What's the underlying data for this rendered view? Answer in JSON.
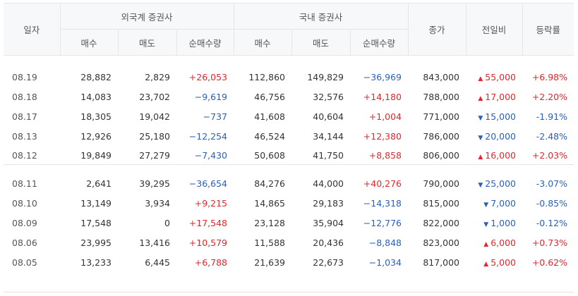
{
  "header": {
    "date_label": "일자",
    "foreign_label": "외국계 증권사",
    "domestic_label": "국내 증권사",
    "close_label": "종가",
    "change_label": "전일비",
    "rate_label": "등락률",
    "buy_label": "매수",
    "sell_label": "매도",
    "net_label": "순매수량"
  },
  "colors": {
    "up": "#e0272f",
    "down": "#2a60b9"
  },
  "rows": [
    {
      "date": "08.19",
      "f_buy": "28,882",
      "f_sell": "2,829",
      "f_net": "+26,053",
      "f_net_dir": "up",
      "d_buy": "112,860",
      "d_sell": "149,829",
      "d_net": "−36,969",
      "d_net_dir": "down",
      "close": "843,000",
      "change": "55,000",
      "change_dir": "up",
      "rate": "+6.98%"
    },
    {
      "date": "08.18",
      "f_buy": "14,083",
      "f_sell": "23,702",
      "f_net": "−9,619",
      "f_net_dir": "down",
      "d_buy": "46,756",
      "d_sell": "32,576",
      "d_net": "+14,180",
      "d_net_dir": "up",
      "close": "788,000",
      "change": "17,000",
      "change_dir": "up",
      "rate": "+2.20%"
    },
    {
      "date": "08.17",
      "f_buy": "18,305",
      "f_sell": "19,042",
      "f_net": "−737",
      "f_net_dir": "down",
      "d_buy": "41,608",
      "d_sell": "40,604",
      "d_net": "+1,004",
      "d_net_dir": "up",
      "close": "771,000",
      "change": "15,000",
      "change_dir": "down",
      "rate": "-1.91%"
    },
    {
      "date": "08.13",
      "f_buy": "12,926",
      "f_sell": "25,180",
      "f_net": "−12,254",
      "f_net_dir": "down",
      "d_buy": "46,524",
      "d_sell": "34,144",
      "d_net": "+12,380",
      "d_net_dir": "up",
      "close": "786,000",
      "change": "20,000",
      "change_dir": "down",
      "rate": "-2.48%"
    },
    {
      "date": "08.12",
      "f_buy": "19,849",
      "f_sell": "27,279",
      "f_net": "−7,430",
      "f_net_dir": "down",
      "d_buy": "50,608",
      "d_sell": "41,750",
      "d_net": "+8,858",
      "d_net_dir": "up",
      "close": "806,000",
      "change": "16,000",
      "change_dir": "up",
      "rate": "+2.03%"
    },
    {
      "date": "08.11",
      "f_buy": "2,641",
      "f_sell": "39,295",
      "f_net": "−36,654",
      "f_net_dir": "down",
      "d_buy": "84,276",
      "d_sell": "44,000",
      "d_net": "+40,276",
      "d_net_dir": "up",
      "close": "790,000",
      "change": "25,000",
      "change_dir": "down",
      "rate": "-3.07%"
    },
    {
      "date": "08.10",
      "f_buy": "13,149",
      "f_sell": "3,934",
      "f_net": "+9,215",
      "f_net_dir": "up",
      "d_buy": "14,865",
      "d_sell": "29,183",
      "d_net": "−14,318",
      "d_net_dir": "down",
      "close": "815,000",
      "change": "7,000",
      "change_dir": "down",
      "rate": "-0.85%"
    },
    {
      "date": "08.09",
      "f_buy": "17,548",
      "f_sell": "0",
      "f_net": "+17,548",
      "f_net_dir": "up",
      "d_buy": "23,128",
      "d_sell": "35,904",
      "d_net": "−12,776",
      "d_net_dir": "down",
      "close": "822,000",
      "change": "1,000",
      "change_dir": "down",
      "rate": "-0.12%"
    },
    {
      "date": "08.06",
      "f_buy": "23,995",
      "f_sell": "13,416",
      "f_net": "+10,579",
      "f_net_dir": "up",
      "d_buy": "11,588",
      "d_sell": "20,436",
      "d_net": "−8,848",
      "d_net_dir": "down",
      "close": "823,000",
      "change": "6,000",
      "change_dir": "up",
      "rate": "+0.73%"
    },
    {
      "date": "08.05",
      "f_buy": "13,233",
      "f_sell": "6,445",
      "f_net": "+6,788",
      "f_net_dir": "up",
      "d_buy": "21,639",
      "d_sell": "22,673",
      "d_net": "−1,034",
      "d_net_dir": "down",
      "close": "817,000",
      "change": "5,000",
      "change_dir": "up",
      "rate": "+0.62%"
    }
  ]
}
